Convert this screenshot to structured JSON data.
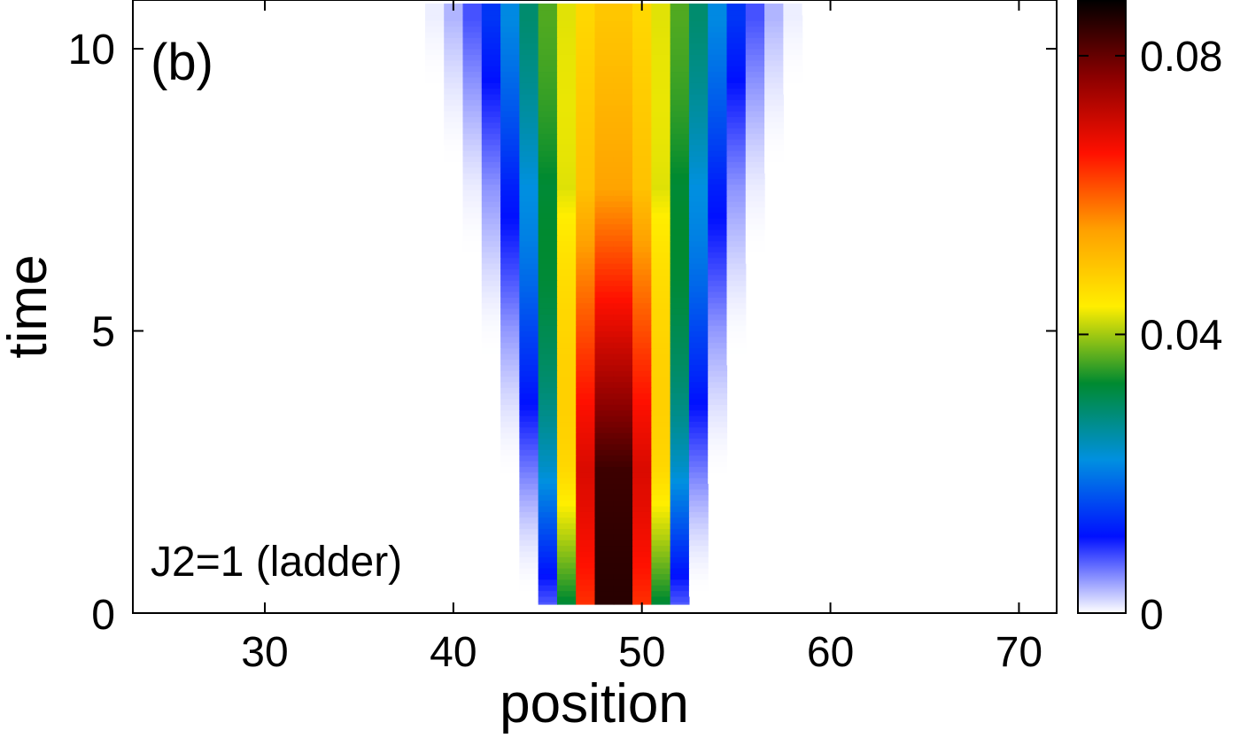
{
  "chart_data": {
    "type": "heatmap",
    "panel_label": "(b)",
    "annotation": "J2=1 (ladder)",
    "xlabel": "position",
    "ylabel": "time",
    "xlim": [
      23,
      72
    ],
    "ylim": [
      0,
      10.8
    ],
    "xticks": [
      30,
      40,
      50,
      60,
      70
    ],
    "yticks": [
      0,
      5,
      10
    ],
    "colorbar": {
      "range": [
        0,
        0.088
      ],
      "ticks": [
        0,
        0.04,
        0.08
      ],
      "tick_labels": [
        "0",
        "0.04",
        "0.08"
      ],
      "colors": [
        "#ffffff",
        "#0010ff",
        "#0090e0",
        "#008a30",
        "#ffee00",
        "#ffa000",
        "#ff1000",
        "#8b0000",
        "#000000"
      ]
    },
    "wavepacket": {
      "center": 48.5,
      "peak_at_t0": 0.088,
      "half_width_at_t0": 4.4,
      "half_width_at_t10_5": 10.5,
      "profile_samples": [
        {
          "time": 0,
          "peak": 0.088,
          "half_width": 4.4
        },
        {
          "time": 2.5,
          "peak": 0.085,
          "half_width": 5.6
        },
        {
          "time": 5,
          "peak": 0.07,
          "half_width": 6.8
        },
        {
          "time": 7.5,
          "peak": 0.055,
          "half_width": 8.3
        },
        {
          "time": 10.5,
          "peak": 0.05,
          "half_width": 10.5
        }
      ]
    }
  }
}
